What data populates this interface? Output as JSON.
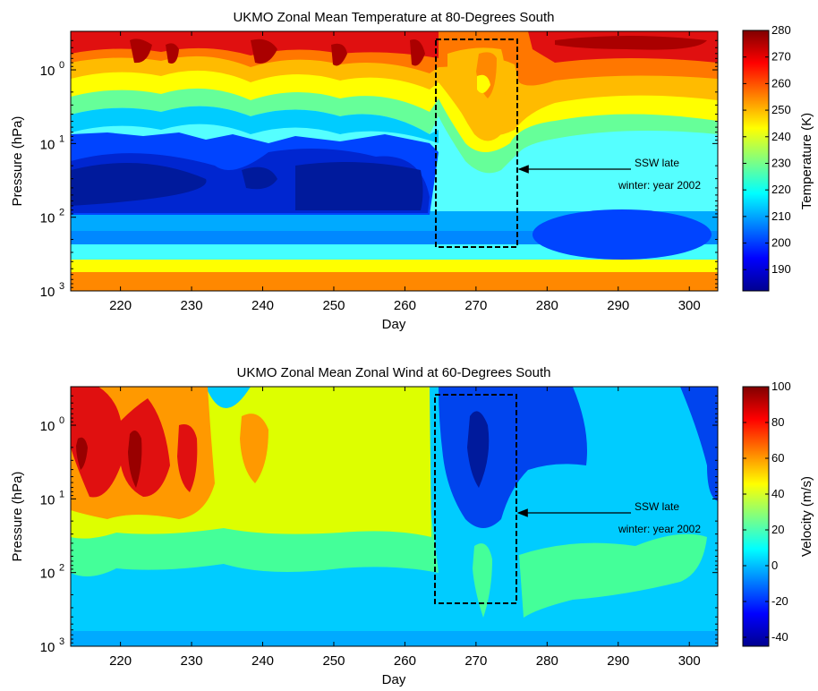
{
  "chart_data": [
    {
      "type": "heatmap",
      "title": "UKMO Zonal Mean Temperature at 80-Degrees South",
      "xlabel": "Day",
      "ylabel": "Pressure (hPa)",
      "xlim": [
        213,
        304
      ],
      "ylim": [
        1000,
        0.3
      ],
      "y_scale": "log",
      "x_ticks": [
        "220",
        "230",
        "240",
        "250",
        "260",
        "270",
        "280",
        "290",
        "300"
      ],
      "y_ticks": [
        {
          "base": "10",
          "exp": "0"
        },
        {
          "base": "10",
          "exp": "1"
        },
        {
          "base": "10",
          "exp": "2"
        },
        {
          "base": "10",
          "exp": "3"
        }
      ],
      "colorbar": {
        "label": "Temperature (K)",
        "range": [
          182,
          280
        ],
        "ticks": [
          "190",
          "200",
          "210",
          "220",
          "230",
          "240",
          "250",
          "260",
          "270",
          "280"
        ]
      },
      "annotation": {
        "lines": [
          "SSW late",
          "winter: year 2002"
        ],
        "box_days": [
          264.5,
          276
        ],
        "box_pressure": [
          0.4,
          270
        ],
        "arrow_target_day": 276,
        "arrow_target_pressure": 25
      }
    },
    {
      "type": "heatmap",
      "title": "UKMO Zonal Mean Zonal Wind at 60-Degrees South",
      "xlabel": "Day",
      "ylabel": "Pressure (hPa)",
      "xlim": [
        213,
        304
      ],
      "ylim": [
        1000,
        0.3
      ],
      "y_scale": "log",
      "x_ticks": [
        "220",
        "230",
        "240",
        "250",
        "260",
        "270",
        "280",
        "290",
        "300"
      ],
      "y_ticks": [
        {
          "base": "10",
          "exp": "0"
        },
        {
          "base": "10",
          "exp": "1"
        },
        {
          "base": "10",
          "exp": "2"
        },
        {
          "base": "10",
          "exp": "3"
        }
      ],
      "colorbar": {
        "label": "Velocity (m/s)",
        "range": [
          -45,
          100
        ],
        "ticks": [
          "100",
          "80",
          "60",
          "40",
          "20",
          "0",
          "-20",
          "-40"
        ]
      },
      "annotation": {
        "lines": [
          "SSW late",
          "winter: year 2002"
        ],
        "box_days": [
          264.5,
          276
        ],
        "box_pressure": [
          0.4,
          270
        ],
        "arrow_target_day": 276,
        "arrow_target_pressure": 20
      }
    }
  ]
}
